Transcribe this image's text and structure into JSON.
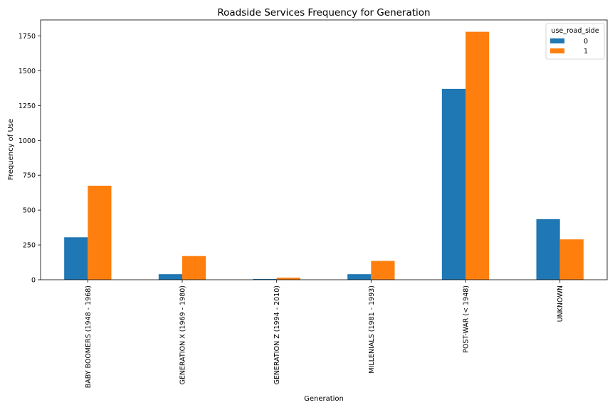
{
  "chart_data": {
    "type": "bar",
    "title": "Roadside Services Frequency for Generation",
    "xlabel": "Generation",
    "ylabel": "Frequency of Use",
    "categories": [
      "BABY BOOMERS (1948 - 1968)",
      "GENERATION X (1969 - 1980)",
      "GENERATION Z (1994 - 2010)",
      "MILLENIALS (1981 - 1993)",
      "POST-WAR (< 1948)",
      "UNKNOWN"
    ],
    "series": [
      {
        "name": "0",
        "color": "#1f77b4",
        "values": [
          305,
          40,
          5,
          40,
          1370,
          435
        ]
      },
      {
        "name": "1",
        "color": "#ff7f0e",
        "values": [
          675,
          170,
          15,
          135,
          1780,
          290
        ]
      }
    ],
    "ylim": [
      0,
      1865
    ],
    "yticks": [
      0,
      250,
      500,
      750,
      1000,
      1250,
      1500,
      1750
    ],
    "legend": {
      "title": "use_road_side",
      "placement": "top-right"
    },
    "grid": false
  }
}
